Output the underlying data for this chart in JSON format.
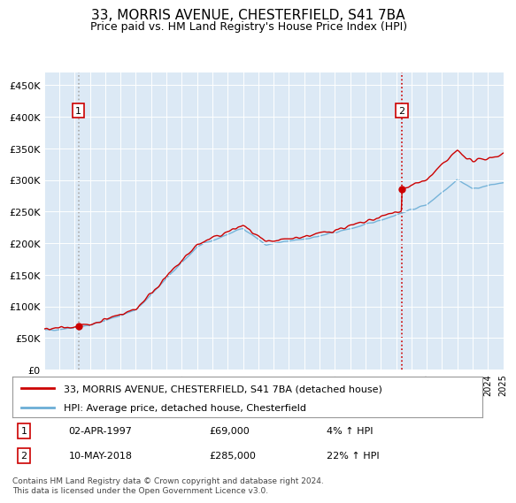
{
  "title": "33, MORRIS AVENUE, CHESTERFIELD, S41 7BA",
  "subtitle": "Price paid vs. HM Land Registry's House Price Index (HPI)",
  "ylabel_values": [
    "£0",
    "£50K",
    "£100K",
    "£150K",
    "£200K",
    "£250K",
    "£300K",
    "£350K",
    "£400K",
    "£450K"
  ],
  "yticks": [
    0,
    50000,
    100000,
    150000,
    200000,
    250000,
    300000,
    350000,
    400000,
    450000
  ],
  "xmin": 1995,
  "xmax": 2025,
  "hpi_color": "#6baed6",
  "price_color": "#cc0000",
  "bg_color": "#dce9f5",
  "sale1_x": 1997.25,
  "sale1_y": 69000,
  "sale2_x": 2018.36,
  "sale2_y": 285000,
  "legend_line1": "33, MORRIS AVENUE, CHESTERFIELD, S41 7BA (detached house)",
  "legend_line2": "HPI: Average price, detached house, Chesterfield",
  "note1_num": "1",
  "note1_date": "02-APR-1997",
  "note1_price": "£69,000",
  "note1_hpi": "4% ↑ HPI",
  "note2_num": "2",
  "note2_date": "10-MAY-2018",
  "note2_price": "£285,000",
  "note2_hpi": "22% ↑ HPI",
  "footer": "Contains HM Land Registry data © Crown copyright and database right 2024.\nThis data is licensed under the Open Government Licence v3.0."
}
